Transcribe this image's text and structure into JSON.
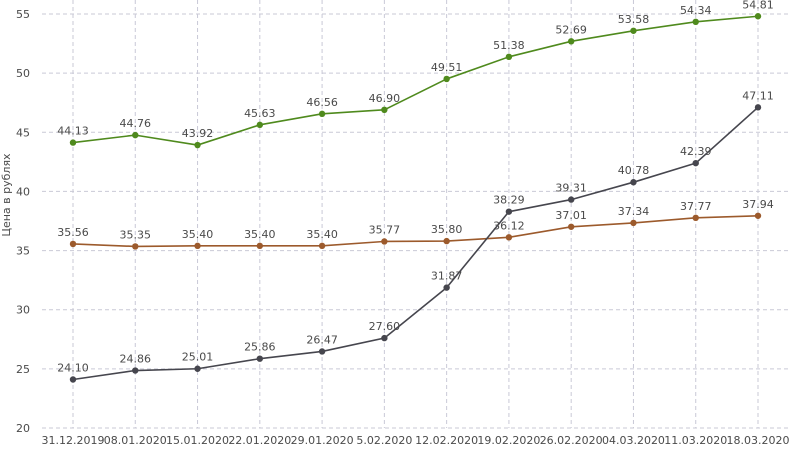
{
  "chart_data": {
    "type": "line",
    "title": "",
    "xlabel": "",
    "ylabel": "Цена в рублях",
    "ylim": [
      20,
      55
    ],
    "yticks": [
      20,
      25,
      30,
      35,
      40,
      45,
      50,
      55
    ],
    "grid": true,
    "legend": "none",
    "categories": [
      "31.12.2019",
      "08.01.2020",
      "15.01.2020",
      "22.01.2020",
      "29.01.2020",
      "5.02.2020",
      "12.02.2020",
      "19.02.2020",
      "26.02.2020",
      "04.03.2020",
      "11.03.2020",
      "18.03.2020"
    ],
    "series": [
      {
        "color": "#4f8a1d",
        "values": [
          44.13,
          44.76,
          43.92,
          45.63,
          46.56,
          46.9,
          49.51,
          51.38,
          52.69,
          53.58,
          54.34,
          54.81
        ],
        "labels": [
          "44.13",
          "44.76",
          "43.92",
          "45.63",
          "46.56",
          "46.90",
          "49.51",
          "51.38",
          "52.69",
          "53.58",
          "54.34",
          "54.81"
        ]
      },
      {
        "color": "#9c5a2c",
        "values": [
          35.56,
          35.35,
          35.4,
          35.4,
          35.4,
          35.77,
          35.8,
          36.12,
          37.01,
          37.34,
          37.77,
          37.94
        ],
        "labels": [
          "35.56",
          "35.35",
          "35.40",
          "35.40",
          "35.40",
          "35.77",
          "35.80",
          "36.12",
          "37.01",
          "37.34",
          "37.77",
          "37.94"
        ]
      },
      {
        "color": "#46464e",
        "values": [
          24.1,
          24.86,
          25.01,
          25.86,
          26.47,
          27.6,
          31.87,
          38.29,
          39.31,
          40.78,
          42.39,
          47.11
        ],
        "labels": [
          "24.10",
          "24.86",
          "25.01",
          "25.86",
          "26.47",
          "27.60",
          "31.87",
          "38.29",
          "39.31",
          "40.78",
          "42.39",
          "47.11"
        ]
      }
    ]
  }
}
